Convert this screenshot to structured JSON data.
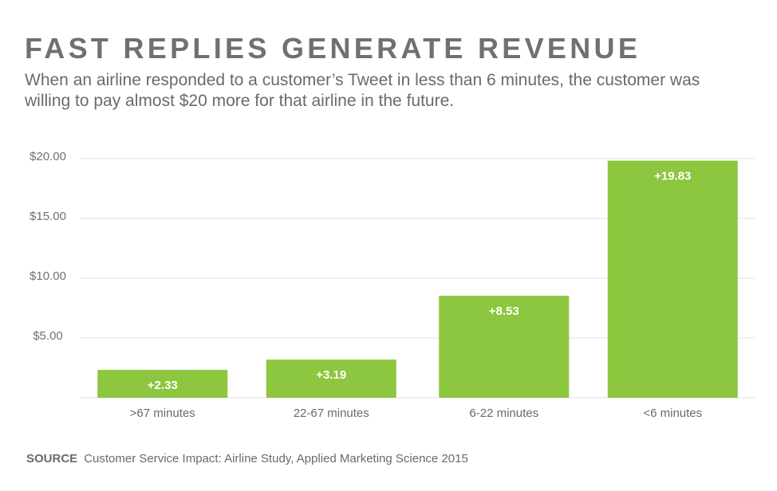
{
  "chart_data": {
    "type": "bar",
    "title": "FAST REPLIES GENERATE REVENUE",
    "subtitle": "When an airline responded to a customer’s Tweet in less than 6 minutes, the customer was willing to pay almost $20 more for that airline in the future.",
    "categories": [
      ">67 minutes",
      "22-67 minutes",
      "6-22 minutes",
      "<6 minutes"
    ],
    "values": [
      2.33,
      3.19,
      8.53,
      19.83
    ],
    "data_labels": [
      "+2.33",
      "+3.19",
      "+8.53",
      "+19.83"
    ],
    "yticks": [
      5,
      10,
      15,
      20
    ],
    "ytick_labels": [
      "$5.00",
      "$10.00",
      "$15.00",
      "$20.00"
    ],
    "ylim": [
      0,
      20
    ],
    "grid": true,
    "xlabel": "",
    "ylabel": "",
    "bar_color": "#8dc63f",
    "label_color": "#ffffff"
  },
  "source": {
    "label": "SOURCE",
    "text": "Customer Service Impact: Airline Study, Applied Marketing Science 2015"
  }
}
